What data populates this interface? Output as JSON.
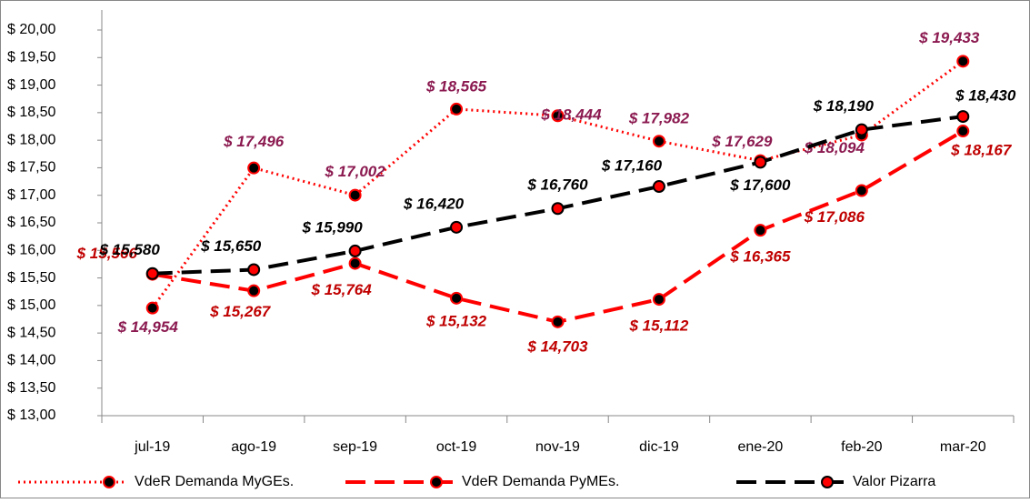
{
  "chart_data": {
    "type": "line",
    "categories": [
      "jul-19",
      "ago-19",
      "sep-19",
      "oct-19",
      "nov-19",
      "dic-19",
      "ene-20",
      "feb-20",
      "mar-20"
    ],
    "ylim": [
      13,
      20
    ],
    "yticks": [
      {
        "value": 13,
        "label": "$ 13,00"
      },
      {
        "value": 13.5,
        "label": "$ 13,50"
      },
      {
        "value": 14,
        "label": "$ 14,00"
      },
      {
        "value": 14.5,
        "label": "$ 14,50"
      },
      {
        "value": 15,
        "label": "$ 15,00"
      },
      {
        "value": 15.5,
        "label": "$ 15,50"
      },
      {
        "value": 16,
        "label": "$ 16,00"
      },
      {
        "value": 16.5,
        "label": "$ 16,50"
      },
      {
        "value": 17,
        "label": "$ 17,00"
      },
      {
        "value": 17.5,
        "label": "$ 17,50"
      },
      {
        "value": 18,
        "label": "$ 18,00"
      },
      {
        "value": 18.5,
        "label": "$ 18,50"
      },
      {
        "value": 19,
        "label": "$ 19,00"
      },
      {
        "value": 19.5,
        "label": "$ 19,50"
      },
      {
        "value": 20,
        "label": "$ 20,00"
      }
    ],
    "grid": false,
    "legend": "bottom",
    "series": [
      {
        "name": "VdeR Demanda MyGEs.",
        "color": "#ff0000",
        "dash": "dotted",
        "marker_fill": "#000000",
        "marker_edge": "#ff0000",
        "label_color": "#8b1a50",
        "values": [
          14.954,
          17.496,
          17.002,
          18.565,
          18.444,
          17.982,
          17.629,
          18.094,
          19.433
        ],
        "value_labels": [
          "$ 14,954",
          "$ 17,496",
          "$ 17,002",
          "$ 18,565",
          "$ 18,444",
          "$ 17,982",
          "$ 17,629",
          "$ 18,094",
          "$ 19,433"
        ]
      },
      {
        "name": "VdeR Demanda PyMEs.",
        "color": "#ff0000",
        "dash": "dashed",
        "marker_fill": "#000000",
        "marker_edge": "#ff0000",
        "label_color": "#c00000",
        "values": [
          15.566,
          15.267,
          15.764,
          15.132,
          14.703,
          15.112,
          16.365,
          17.086,
          18.167
        ],
        "value_labels": [
          "$ 15,566",
          "$ 15,267",
          "$ 15,764",
          "$ 15,132",
          "$ 14,703",
          "$ 15,112",
          "$ 16,365",
          "$ 17,086",
          "$ 18,167"
        ]
      },
      {
        "name": "Valor Pizarra",
        "color": "#000000",
        "dash": "dashed",
        "marker_fill": "#ff0000",
        "marker_edge": "#000000",
        "label_color": "#000000",
        "values": [
          15.58,
          15.65,
          15.99,
          16.42,
          16.76,
          17.16,
          17.6,
          18.19,
          18.43
        ],
        "value_labels": [
          "$ 15,580",
          "$ 15,650",
          "$ 15,990",
          "$ 16,420",
          "$ 16,760",
          "$ 17,160",
          "$ 17,600",
          "$ 18,190",
          "$ 18,430"
        ]
      }
    ]
  }
}
